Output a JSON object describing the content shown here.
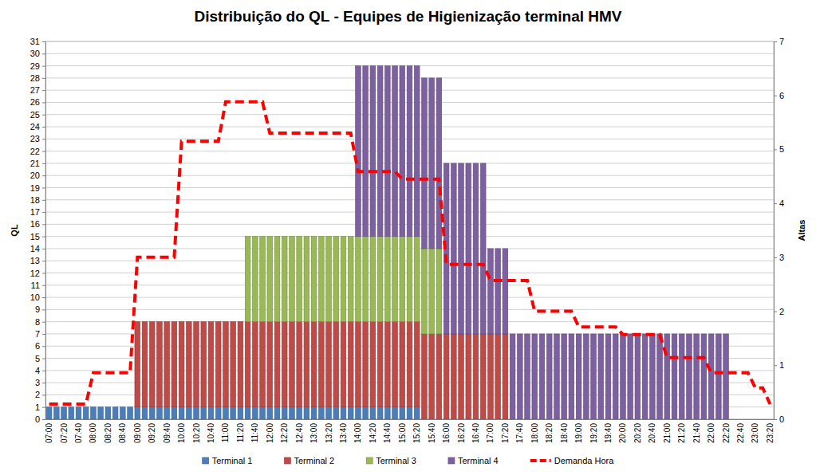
{
  "chart_data": {
    "type": "bar",
    "title": "Distribuição do QL - Equipes de Higienização terminal HMV",
    "ylabel": "QL",
    "y2label": "Altas",
    "stacked": true,
    "grid": true,
    "legend": "bottom",
    "categories": [
      "07:00",
      null,
      "07:20",
      null,
      "07:40",
      null,
      "08:00",
      null,
      "08:20",
      null,
      "08:40",
      null,
      "09:00",
      null,
      "09:20",
      null,
      "09:40",
      null,
      "10:00",
      null,
      "10:20",
      null,
      "10:40",
      null,
      "11:00",
      null,
      "11:20",
      null,
      "11:40",
      null,
      "12:00",
      null,
      "12:20",
      null,
      "12:40",
      null,
      "13:00",
      null,
      "13:20",
      null,
      "13:40",
      null,
      "14:00",
      null,
      "14:20",
      null,
      "14:40",
      null,
      "15:00",
      null,
      "15:20",
      null,
      "15:40",
      null,
      "16:00",
      null,
      "16:20",
      null,
      "16:40",
      null,
      "17:00",
      null,
      "17:20",
      null,
      "17:40",
      null,
      "18:00",
      null,
      "18:20",
      null,
      "18:40",
      null,
      "19:00",
      null,
      "19:20",
      null,
      "19:40",
      null,
      "20:00",
      null,
      "20:20",
      null,
      "20:40",
      null,
      "21:00",
      null,
      "21:20",
      null,
      "21:40",
      null,
      "22:00",
      null,
      "22:20",
      null,
      "22:40",
      null,
      "23:00",
      null,
      "23:20"
    ],
    "ylim": [
      0,
      31
    ],
    "yticks": [
      0,
      1,
      2,
      3,
      4,
      5,
      6,
      7,
      8,
      9,
      10,
      11,
      12,
      13,
      14,
      15,
      16,
      17,
      18,
      19,
      20,
      21,
      22,
      23,
      24,
      25,
      26,
      27,
      28,
      29,
      30,
      31
    ],
    "y2lim": [
      0,
      7
    ],
    "y2ticks": [
      0,
      1,
      2,
      3,
      4,
      5,
      6,
      7
    ],
    "series": [
      {
        "name": "Terminal 1",
        "type": "bar",
        "color": "#4a7ebb",
        "values": [
          1,
          1,
          1,
          1,
          1,
          1,
          1,
          1,
          1,
          1,
          1,
          1,
          1,
          1,
          1,
          1,
          1,
          1,
          1,
          1,
          1,
          1,
          1,
          1,
          1,
          1,
          1,
          1,
          1,
          1,
          1,
          1,
          1,
          1,
          1,
          1,
          1,
          1,
          1,
          1,
          1,
          1,
          1,
          1,
          1,
          1,
          1,
          1,
          1,
          1,
          1,
          null,
          null,
          null,
          null,
          null,
          null,
          null,
          null,
          null,
          null,
          null,
          null,
          null,
          null,
          null,
          null,
          null,
          null,
          null,
          null,
          null,
          null,
          null,
          null,
          null,
          null,
          null,
          null,
          null,
          null,
          null,
          null,
          null,
          null,
          null,
          null,
          null,
          null,
          null,
          null,
          null,
          null,
          null,
          null,
          null,
          null,
          null,
          null
        ]
      },
      {
        "name": "Terminal 2",
        "type": "bar",
        "color": "#be4b48",
        "values": [
          null,
          null,
          null,
          null,
          null,
          null,
          null,
          null,
          null,
          null,
          null,
          null,
          7,
          7,
          7,
          7,
          7,
          7,
          7,
          7,
          7,
          7,
          7,
          7,
          7,
          7,
          7,
          7,
          7,
          7,
          7,
          7,
          7,
          7,
          7,
          7,
          7,
          7,
          7,
          7,
          7,
          7,
          7,
          7,
          7,
          7,
          7,
          7,
          7,
          7,
          7,
          7,
          7,
          7,
          7,
          7,
          7,
          7,
          7,
          7,
          7,
          7,
          7,
          null,
          null,
          null,
          null,
          null,
          null,
          null,
          null,
          null,
          null,
          null,
          null,
          null,
          null,
          null,
          null,
          null,
          null,
          null,
          null,
          null,
          null,
          null,
          null,
          null,
          null,
          null,
          null,
          null,
          null,
          null,
          null,
          null,
          null,
          null,
          null
        ]
      },
      {
        "name": "Terminal 3",
        "type": "bar",
        "color": "#98b954",
        "values": [
          null,
          null,
          null,
          null,
          null,
          null,
          null,
          null,
          null,
          null,
          null,
          null,
          null,
          null,
          null,
          null,
          null,
          null,
          null,
          null,
          null,
          null,
          null,
          null,
          null,
          null,
          null,
          7,
          7,
          7,
          7,
          7,
          7,
          7,
          7,
          7,
          7,
          7,
          7,
          7,
          7,
          7,
          7,
          7,
          7,
          7,
          7,
          7,
          7,
          7,
          7,
          7,
          7,
          7,
          null,
          null,
          null,
          null,
          null,
          null,
          null,
          null,
          null,
          null,
          null,
          null,
          null,
          null,
          null,
          null,
          null,
          null,
          null,
          null,
          null,
          null,
          null,
          null,
          null,
          null,
          null,
          null,
          null,
          null,
          null,
          null,
          null,
          null,
          null,
          null,
          null,
          null,
          null,
          null,
          null,
          null,
          null,
          null,
          null
        ]
      },
      {
        "name": "Terminal 4",
        "type": "bar",
        "color": "#7d60a0",
        "values": [
          null,
          null,
          null,
          null,
          null,
          null,
          null,
          null,
          null,
          null,
          null,
          null,
          null,
          null,
          null,
          null,
          null,
          null,
          null,
          null,
          null,
          null,
          null,
          null,
          null,
          null,
          null,
          null,
          null,
          null,
          null,
          null,
          null,
          null,
          null,
          null,
          null,
          null,
          null,
          null,
          null,
          null,
          14,
          14,
          14,
          14,
          14,
          14,
          14,
          14,
          14,
          14,
          14,
          14,
          14,
          14,
          14,
          14,
          14,
          14,
          7,
          7,
          7,
          7,
          7,
          7,
          7,
          7,
          7,
          7,
          7,
          7,
          7,
          7,
          7,
          7,
          7,
          7,
          7,
          7,
          7,
          7,
          7,
          7,
          7,
          7,
          7,
          7,
          7,
          7,
          7,
          7,
          7,
          null,
          null,
          null,
          null,
          null,
          null
        ]
      },
      {
        "name": "Demanda Hora",
        "type": "line",
        "axis": "y2",
        "color": "#ff0000",
        "line_style": "dashed",
        "values": [
          0.28,
          0.28,
          0.28,
          0.28,
          0.28,
          0.28,
          0.86,
          0.86,
          0.86,
          0.86,
          0.86,
          0.86,
          3,
          3,
          3,
          3,
          3,
          3,
          5.15,
          5.15,
          5.15,
          5.15,
          5.15,
          5.15,
          5.88,
          5.88,
          5.88,
          5.88,
          5.88,
          5.88,
          5.3,
          5.3,
          5.3,
          5.3,
          5.3,
          5.3,
          5.3,
          5.3,
          5.3,
          5.3,
          5.3,
          5.3,
          4.59,
          4.59,
          4.59,
          4.59,
          4.59,
          4.59,
          4.45,
          4.45,
          4.45,
          4.45,
          4.45,
          4.45,
          2.87,
          2.87,
          2.87,
          2.87,
          2.87,
          2.87,
          2.57,
          2.57,
          2.57,
          2.57,
          2.57,
          2.57,
          2,
          2,
          2,
          2,
          2,
          2,
          1.71,
          1.71,
          1.71,
          1.71,
          1.71,
          1.71,
          1.57,
          1.57,
          1.57,
          1.57,
          1.57,
          1.57,
          1.14,
          1.14,
          1.14,
          1.14,
          1.14,
          1.14,
          0.86,
          0.86,
          0.86,
          0.86,
          0.86,
          0.86,
          0.58,
          0.58,
          0.28
        ]
      }
    ]
  }
}
